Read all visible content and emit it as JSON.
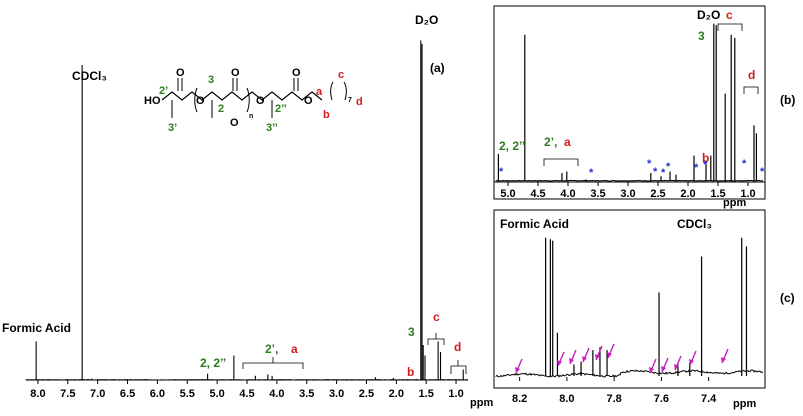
{
  "colors": {
    "green": "#2e7d1e",
    "red": "#d11a1a",
    "blue": "#1f2fd6",
    "magenta": "#c51fbf",
    "black": "#000000"
  },
  "chart_data": [
    {
      "type": "line",
      "panel": "(a)",
      "xlabel": "ppm",
      "xlim": [
        8.2,
        0.8
      ],
      "ticks": [
        "8.0",
        "7.5",
        "7.0",
        "6.5",
        "6.0",
        "5.5",
        "5.0",
        "4.5",
        "4.0",
        "3.5",
        "3.0",
        "2.5",
        "2.0",
        "1.5",
        "1.0"
      ],
      "peaks": [
        {
          "x": 8.03,
          "h": 0.11
        },
        {
          "x": 7.26,
          "h": 0.9
        },
        {
          "x": 5.16,
          "h": 0.018
        },
        {
          "x": 4.72,
          "h": 0.07
        },
        {
          "x": 4.36,
          "h": 0.012
        },
        {
          "x": 4.15,
          "h": 0.016
        },
        {
          "x": 4.08,
          "h": 0.012
        },
        {
          "x": 1.59,
          "h": 0.97
        },
        {
          "x": 1.57,
          "h": 0.96
        },
        {
          "x": 1.55,
          "h": 0.1
        },
        {
          "x": 1.52,
          "h": 0.07
        },
        {
          "x": 1.3,
          "h": 0.11
        },
        {
          "x": 1.26,
          "h": 0.08
        },
        {
          "x": 0.88,
          "h": 0.03
        },
        {
          "x": 2.35,
          "h": 0.008
        },
        {
          "x": 2.05,
          "h": 0.006
        },
        {
          "x": 7.1,
          "h": 0.004
        }
      ],
      "labels": {
        "d2o": "D₂O",
        "cdcl3": "CDCl₃",
        "formic_acid": "Formic Acid",
        "panel": "(a)",
        "peak_2_2pp": "2, 2’’",
        "peak_2p": "2’,",
        "peak_a": "a",
        "peak_3": "3",
        "peak_b": "b",
        "peak_c": "c",
        "peak_d": "d"
      }
    },
    {
      "type": "line",
      "panel": "(b)",
      "xlabel": "ppm",
      "xlim": [
        5.2,
        0.75
      ],
      "ticks": [
        "5.0",
        "4.5",
        "4.0",
        "3.5",
        "3.0",
        "2.5",
        "2.0",
        "1.5",
        "1.0"
      ],
      "peaks": [
        {
          "x": 5.16,
          "h": 0.17
        },
        {
          "x": 4.72,
          "h": 0.92
        },
        {
          "x": 4.1,
          "h": 0.05
        },
        {
          "x": 4.02,
          "h": 0.06
        },
        {
          "x": 3.7,
          "h": 0.01
        },
        {
          "x": 2.62,
          "h": 0.05
        },
        {
          "x": 2.45,
          "h": 0.03
        },
        {
          "x": 2.3,
          "h": 0.06
        },
        {
          "x": 2.2,
          "h": 0.04
        },
        {
          "x": 1.9,
          "h": 0.16
        },
        {
          "x": 1.7,
          "h": 0.12
        },
        {
          "x": 1.62,
          "h": 0.16
        },
        {
          "x": 1.57,
          "h": 0.99
        },
        {
          "x": 1.53,
          "h": 0.98
        },
        {
          "x": 1.38,
          "h": 0.55
        },
        {
          "x": 1.28,
          "h": 0.92
        },
        {
          "x": 1.22,
          "h": 0.9
        },
        {
          "x": 0.9,
          "h": 0.35
        },
        {
          "x": 0.86,
          "h": 0.3
        }
      ],
      "labels": {
        "d2o": "D₂O",
        "panel": "(b)",
        "peak_2_2pp": "2, 2’’",
        "peak_2p": "2’,",
        "peak_a": "a",
        "peak_3": "3",
        "peak_b": "b",
        "peak_c": "c",
        "peak_d": "d",
        "impurity_marker": "*"
      }
    },
    {
      "type": "line",
      "panel": "(c)",
      "xlabel": "ppm",
      "xlim": [
        8.3,
        7.17
      ],
      "ticks": [
        "8.2",
        "8.0",
        "7.8",
        "7.6",
        "7.4"
      ],
      "peaks": [
        {
          "x": 8.09,
          "h": 0.96
        },
        {
          "x": 8.07,
          "h": 0.95
        },
        {
          "x": 8.06,
          "h": 0.94
        },
        {
          "x": 8.04,
          "h": 0.3
        },
        {
          "x": 7.89,
          "h": 0.18
        },
        {
          "x": 7.86,
          "h": 0.2
        },
        {
          "x": 7.83,
          "h": 0.18
        },
        {
          "x": 7.61,
          "h": 0.58
        },
        {
          "x": 7.43,
          "h": 0.83
        },
        {
          "x": 7.26,
          "h": 0.96
        },
        {
          "x": 7.24,
          "h": 0.9
        },
        {
          "x": 7.97,
          "h": 0.08
        },
        {
          "x": 7.94,
          "h": 0.1
        },
        {
          "x": 7.53,
          "h": 0.08
        },
        {
          "x": 7.48,
          "h": 0.09
        }
      ],
      "labels": {
        "formic_acid": "Formic Acid",
        "cdcl3": "CDCl₃",
        "panel": "(c)"
      }
    }
  ],
  "structure": {
    "atoms": [
      "HO",
      "O",
      "O",
      "O",
      "O",
      "O",
      "O",
      "O"
    ],
    "subscript_n": "n",
    "subscript_7": "7",
    "num_2": "2",
    "num_2p": "2’",
    "num_2pp": "2’’",
    "num_3": "3",
    "num_3p": "3’",
    "num_3pp": "3’’",
    "a": "a",
    "b": "b",
    "c": "c",
    "d": "d"
  }
}
